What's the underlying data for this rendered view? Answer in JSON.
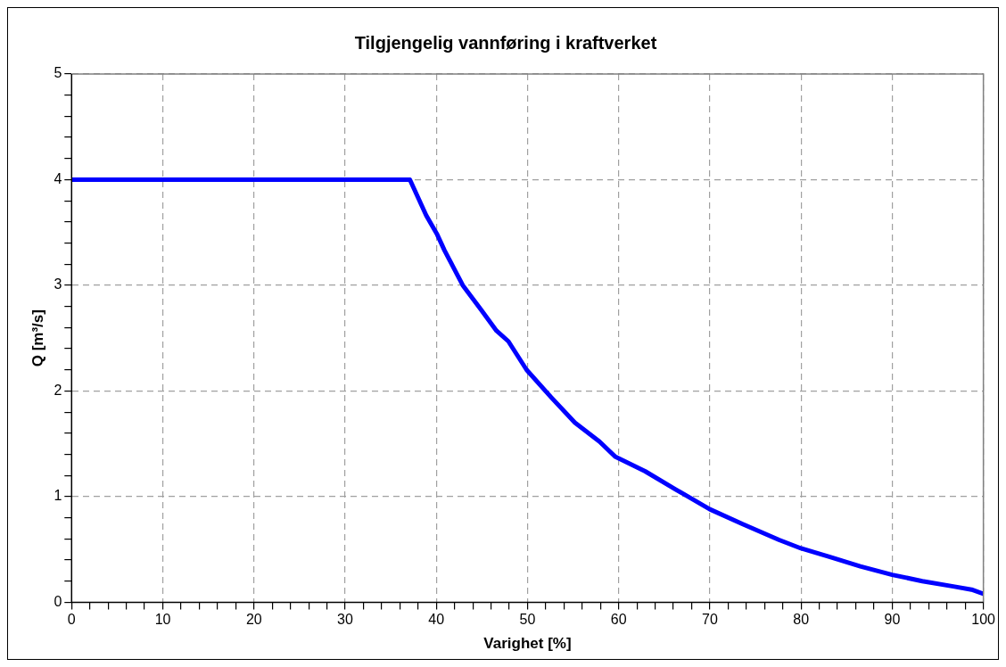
{
  "chart_data": {
    "type": "line",
    "title": "Tilgjengelig vannføring i kraftverket",
    "xlabel": "Varighet [%]",
    "ylabel": "Q [m³/s]",
    "x": [
      0,
      37.1,
      38.9,
      40.1,
      40.9,
      42.9,
      44.9,
      46.6,
      47.9,
      49.9,
      52.6,
      55.2,
      57.9,
      59.6,
      62.9,
      66.2,
      70,
      73.6,
      77.6,
      80,
      83.1,
      86.5,
      90,
      93.3,
      96.7,
      98.7,
      100
    ],
    "series": [
      {
        "color": "#0000ff",
        "values": [
          4,
          4,
          3.66,
          3.48,
          3.33,
          3.0,
          2.77,
          2.57,
          2.47,
          2.2,
          1.94,
          1.7,
          1.52,
          1.38,
          1.24,
          1.07,
          0.88,
          0.74,
          0.59,
          0.51,
          0.43,
          0.34,
          0.26,
          0.2,
          0.15,
          0.12,
          0.08
        ]
      }
    ],
    "xlim": [
      0,
      100
    ],
    "ylim": [
      0,
      5
    ],
    "xticks": [
      0,
      {
        "value": 2,
        "label": null
      },
      {
        "value": 4,
        "label": null
      },
      {
        "value": 6,
        "label": null
      },
      {
        "value": 8,
        "label": null
      },
      10,
      {
        "value": 12,
        "label": null
      },
      {
        "value": 14,
        "label": null
      },
      {
        "value": 16,
        "label": null
      },
      {
        "value": 18,
        "label": null
      },
      20,
      {
        "value": 22,
        "label": null
      },
      {
        "value": 24,
        "label": null
      },
      {
        "value": 26,
        "label": null
      },
      {
        "value": 28,
        "label": null
      },
      30,
      {
        "value": 32,
        "label": null
      },
      {
        "value": 34,
        "label": null
      },
      {
        "value": 36,
        "label": null
      },
      {
        "value": 38,
        "label": null
      },
      40,
      {
        "value": 42,
        "label": null
      },
      {
        "value": 44,
        "label": null
      },
      {
        "value": 46,
        "label": null
      },
      {
        "value": 48,
        "label": null
      },
      50,
      {
        "value": 52,
        "label": null
      },
      {
        "value": 54,
        "label": null
      },
      {
        "value": 56,
        "label": null
      },
      {
        "value": 58,
        "label": null
      },
      60,
      {
        "value": 62,
        "label": null
      },
      {
        "value": 64,
        "label": null
      },
      {
        "value": 66,
        "label": null
      },
      {
        "value": 68,
        "label": null
      },
      70,
      {
        "value": 72,
        "label": null
      },
      {
        "value": 74,
        "label": null
      },
      {
        "value": 76,
        "label": null
      },
      {
        "value": 78,
        "label": null
      },
      80,
      {
        "value": 82,
        "label": null
      },
      {
        "value": 84,
        "label": null
      },
      {
        "value": 86,
        "label": null
      },
      {
        "value": 88,
        "label": null
      },
      90,
      {
        "value": 92,
        "label": null
      },
      {
        "value": 94,
        "label": null
      },
      {
        "value": 96,
        "label": null
      },
      {
        "value": 98,
        "label": null
      },
      100
    ],
    "yticks": [
      0,
      {
        "value": 0.2,
        "label": null
      },
      {
        "value": 0.4,
        "label": null
      },
      {
        "value": 0.6,
        "label": null
      },
      {
        "value": 0.8,
        "label": null
      },
      1,
      {
        "value": 1.2,
        "label": null
      },
      {
        "value": 1.4,
        "label": null
      },
      {
        "value": 1.6,
        "label": null
      },
      {
        "value": 1.8,
        "label": null
      },
      2,
      {
        "value": 2.2,
        "label": null
      },
      {
        "value": 2.4,
        "label": null
      },
      {
        "value": 2.6,
        "label": null
      },
      {
        "value": 2.8,
        "label": null
      },
      3,
      {
        "value": 3.2,
        "label": null
      },
      {
        "value": 3.4,
        "label": null
      },
      {
        "value": 3.6,
        "label": null
      },
      {
        "value": 3.8,
        "label": null
      },
      4,
      {
        "value": 4.2,
        "label": null
      },
      {
        "value": 4.4,
        "label": null
      },
      {
        "value": 4.6,
        "label": null
      },
      {
        "value": 4.8,
        "label": null
      },
      5
    ],
    "grid": true,
    "legend": false,
    "marker": "none",
    "line_style": "solid"
  }
}
